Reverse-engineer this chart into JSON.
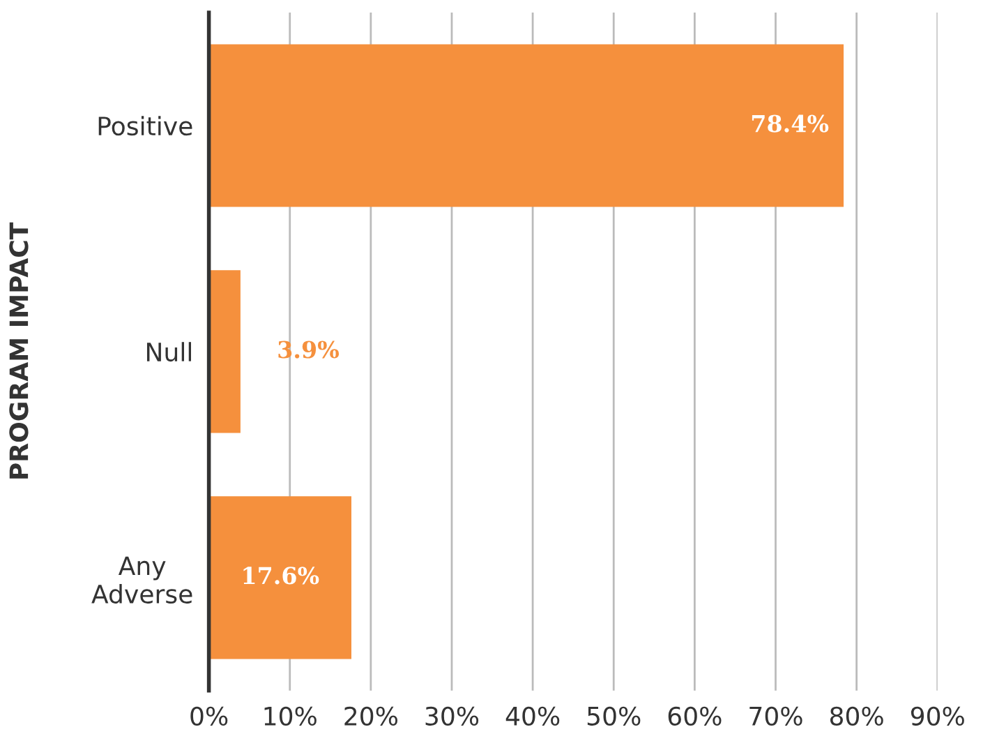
{
  "chart_data": {
    "type": "bar",
    "orientation": "horizontal",
    "ylabel": "PROGRAM IMPACT",
    "categories": [
      "Positive",
      "Null",
      "Any\nAdverse"
    ],
    "values": [
      78.4,
      3.9,
      17.6
    ],
    "color": "#f5903d",
    "value_labels": [
      "78.4%",
      "3.9%",
      "17.6%"
    ],
    "xlim": [
      0,
      90
    ],
    "xticks": [
      {
        "value": 0,
        "label": "0%"
      },
      {
        "value": 10,
        "label": "10%"
      },
      {
        "value": 20,
        "label": "20%"
      },
      {
        "value": 30,
        "label": "30%"
      },
      {
        "value": 40,
        "label": "40%"
      },
      {
        "value": 50,
        "label": "50%"
      },
      {
        "value": 60,
        "label": "60%"
      },
      {
        "value": 70,
        "label": "70%"
      },
      {
        "value": 80,
        "label": "80%"
      },
      {
        "value": 90,
        "label": "90%"
      }
    ],
    "grid": "x",
    "legend": false
  }
}
